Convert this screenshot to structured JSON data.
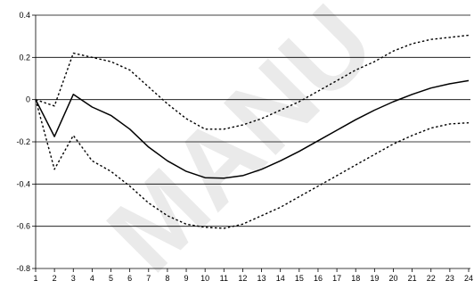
{
  "chart_data": {
    "type": "line",
    "title": "",
    "xlabel": "",
    "ylabel": "",
    "x": [
      1,
      2,
      3,
      4,
      5,
      6,
      7,
      8,
      9,
      10,
      11,
      12,
      13,
      14,
      15,
      16,
      17,
      18,
      19,
      20,
      21,
      22,
      23,
      24
    ],
    "x_tick_labels": [
      "1",
      "2",
      "3",
      "4",
      "5",
      "6",
      "7",
      "8",
      "9",
      "10",
      "11",
      "12",
      "13",
      "14",
      "15",
      "16",
      "17",
      "18",
      "19",
      "20",
      "21",
      "22",
      "23",
      "24"
    ],
    "ylim": [
      -0.8,
      0.4
    ],
    "y_ticks": [
      -0.8,
      -0.6,
      -0.4,
      -0.2,
      0,
      0.2,
      0.4
    ],
    "y_tick_labels": [
      "-0.8",
      "-0.6",
      "-0.4",
      "-0.2",
      "0",
      "0.2",
      "0.4"
    ],
    "grid": "horizontal",
    "legend": "none",
    "series": [
      {
        "style": "solid",
        "color": "#000000",
        "values": [
          0.0,
          -0.175,
          0.025,
          -0.035,
          -0.075,
          -0.14,
          -0.225,
          -0.29,
          -0.34,
          -0.37,
          -0.372,
          -0.36,
          -0.33,
          -0.29,
          -0.245,
          -0.195,
          -0.145,
          -0.095,
          -0.05,
          -0.01,
          0.025,
          0.055,
          0.075,
          0.09
        ]
      },
      {
        "style": "dotted",
        "color": "#000000",
        "values": [
          0.0,
          -0.03,
          0.22,
          0.2,
          0.18,
          0.14,
          0.06,
          -0.02,
          -0.09,
          -0.14,
          -0.14,
          -0.12,
          -0.09,
          -0.05,
          -0.01,
          0.04,
          0.09,
          0.14,
          0.18,
          0.23,
          0.265,
          0.285,
          0.295,
          0.305
        ]
      },
      {
        "style": "dotted",
        "color": "#000000",
        "values": [
          0.0,
          -0.33,
          -0.17,
          -0.29,
          -0.34,
          -0.41,
          -0.49,
          -0.55,
          -0.59,
          -0.605,
          -0.61,
          -0.59,
          -0.55,
          -0.51,
          -0.46,
          -0.41,
          -0.36,
          -0.31,
          -0.26,
          -0.21,
          -0.17,
          -0.135,
          -0.115,
          -0.11
        ]
      }
    ]
  },
  "watermark": {
    "text": "MANU",
    "color": "#d9d9d9"
  }
}
